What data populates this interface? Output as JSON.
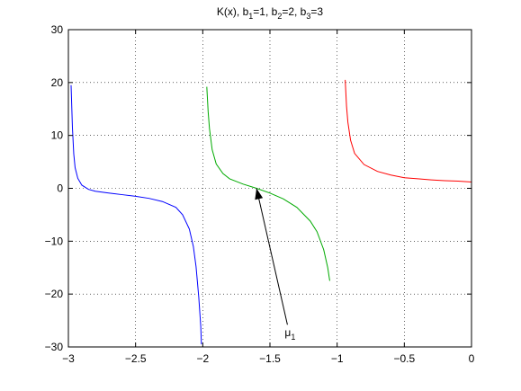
{
  "chart_data": {
    "type": "line",
    "title": {
      "parts": [
        {
          "text": "K(x), b",
          "sub": false
        },
        {
          "text": "1",
          "sub": true
        },
        {
          "text": "=1, b",
          "sub": false
        },
        {
          "text": "2",
          "sub": true
        },
        {
          "text": "=2, b",
          "sub": false
        },
        {
          "text": "3",
          "sub": true
        },
        {
          "text": "=3",
          "sub": false
        }
      ]
    },
    "xlabel": "",
    "ylabel": "",
    "xlim": [
      -3,
      0
    ],
    "ylim": [
      -30,
      30
    ],
    "xticks": [
      -3,
      -2.5,
      -2,
      -1.5,
      -1,
      -0.5,
      0
    ],
    "xtick_labels": [
      "−3",
      "−2.5",
      "−2",
      "−1.5",
      "−1",
      "−0.5",
      "0"
    ],
    "yticks": [
      -30,
      -20,
      -10,
      0,
      10,
      20,
      30
    ],
    "ytick_labels": [
      "−30",
      "−20",
      "−10",
      "0",
      "10",
      "20",
      "30"
    ],
    "grid": true,
    "series": [
      {
        "color": "#0000ff",
        "points": [
          [
            -2.98,
            19.5
          ],
          [
            -2.97,
            11.5
          ],
          [
            -2.96,
            6.5
          ],
          [
            -2.95,
            3.9
          ],
          [
            -2.93,
            1.9
          ],
          [
            -2.9,
            0.6
          ],
          [
            -2.85,
            -0.2
          ],
          [
            -2.8,
            -0.55
          ],
          [
            -2.7,
            -0.9
          ],
          [
            -2.6,
            -1.2
          ],
          [
            -2.5,
            -1.5
          ],
          [
            -2.4,
            -1.9
          ],
          [
            -2.3,
            -2.5
          ],
          [
            -2.2,
            -3.6
          ],
          [
            -2.15,
            -5.0
          ],
          [
            -2.1,
            -7.7
          ],
          [
            -2.07,
            -11.0
          ],
          [
            -2.05,
            -14.8
          ],
          [
            -2.03,
            -20.5
          ],
          [
            -2.015,
            -26.0
          ],
          [
            -2.01,
            -29.5
          ]
        ]
      },
      {
        "color": "#00aa00",
        "points": [
          [
            -1.97,
            19.2
          ],
          [
            -1.96,
            14.5
          ],
          [
            -1.95,
            11.3
          ],
          [
            -1.93,
            7.3
          ],
          [
            -1.9,
            4.6
          ],
          [
            -1.85,
            2.8
          ],
          [
            -1.8,
            1.8
          ],
          [
            -1.7,
            0.8
          ],
          [
            -1.6,
            0.0
          ],
          [
            -1.5,
            -0.9
          ],
          [
            -1.4,
            -2.0
          ],
          [
            -1.3,
            -3.6
          ],
          [
            -1.2,
            -6.2
          ],
          [
            -1.15,
            -8.2
          ],
          [
            -1.1,
            -11.6
          ],
          [
            -1.07,
            -15.0
          ],
          [
            -1.055,
            -17.5
          ]
        ]
      },
      {
        "color": "#ff0000",
        "points": [
          [
            -0.94,
            20.5
          ],
          [
            -0.93,
            15.5
          ],
          [
            -0.92,
            12.5
          ],
          [
            -0.9,
            9.1
          ],
          [
            -0.87,
            6.6
          ],
          [
            -0.8,
            4.5
          ],
          [
            -0.7,
            3.2
          ],
          [
            -0.6,
            2.5
          ],
          [
            -0.5,
            2.0
          ],
          [
            -0.4,
            1.8
          ],
          [
            -0.3,
            1.6
          ],
          [
            -0.2,
            1.45
          ],
          [
            -0.1,
            1.35
          ],
          [
            0.0,
            1.2
          ]
        ]
      }
    ],
    "annotations": [
      {
        "text": "μ",
        "sub": "1",
        "label_at": [
          -1.35,
          -28.0
        ],
        "arrow_from": [
          -1.37,
          -25.8
        ],
        "arrow_to": [
          -1.6,
          0.0
        ]
      }
    ]
  }
}
